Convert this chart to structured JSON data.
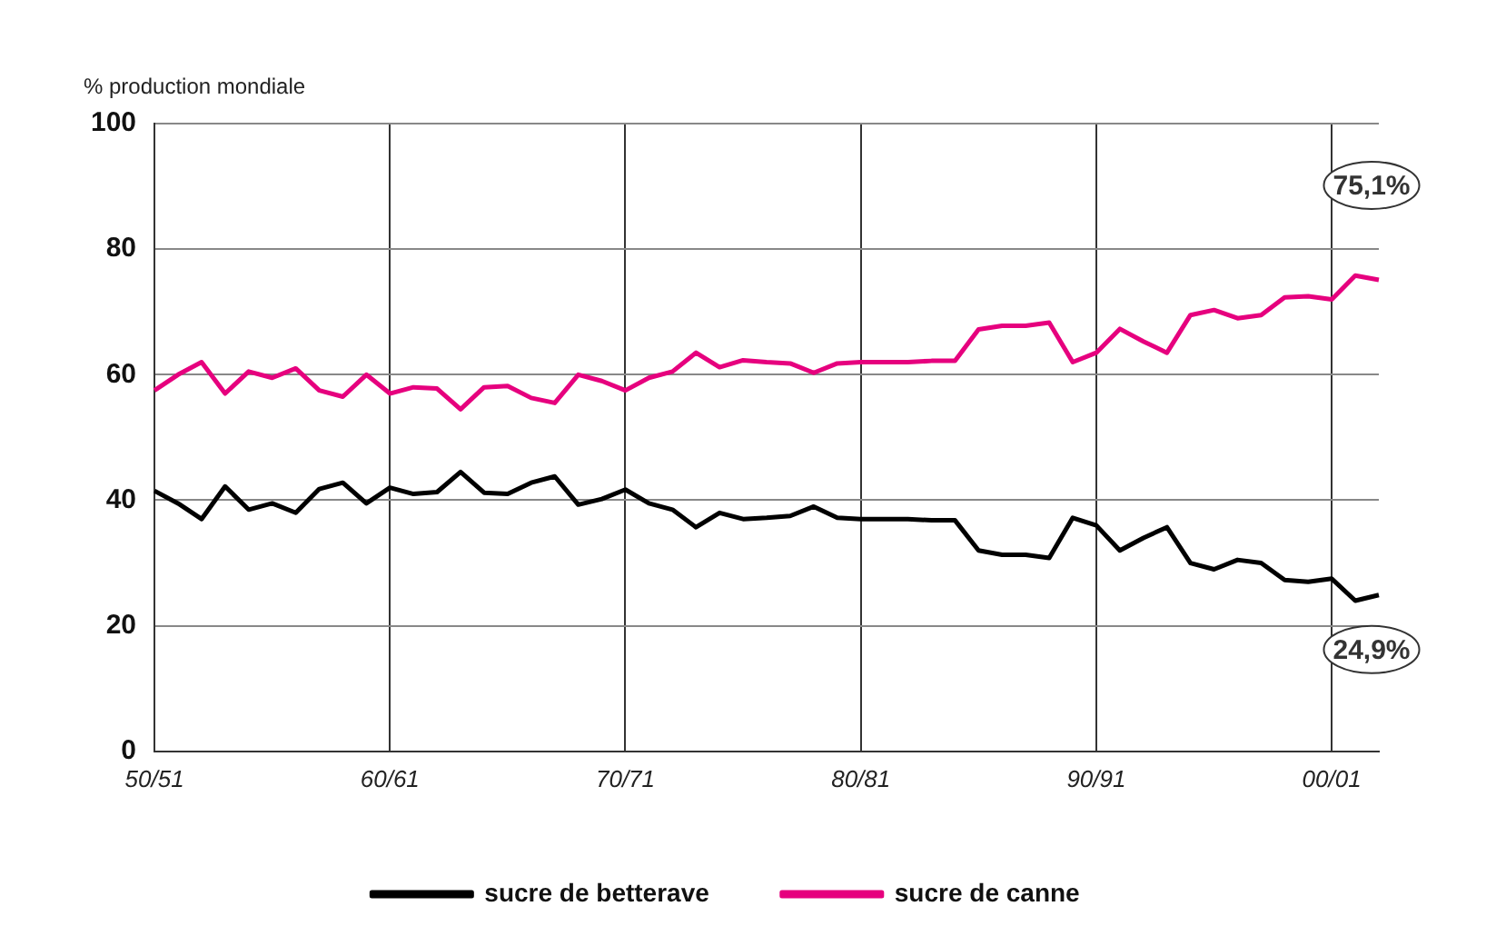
{
  "chart_data": {
    "type": "line",
    "ylabel": "% production mondiale",
    "categories": [
      "50/51",
      null,
      null,
      null,
      null,
      null,
      null,
      null,
      null,
      null,
      "60/61",
      null,
      null,
      null,
      null,
      null,
      null,
      null,
      null,
      null,
      "70/71",
      null,
      null,
      null,
      null,
      null,
      null,
      null,
      null,
      null,
      "80/81",
      null,
      null,
      null,
      null,
      null,
      null,
      null,
      null,
      null,
      "90/91",
      null,
      null,
      null,
      null,
      null,
      null,
      null,
      null,
      null,
      "00/01",
      null,
      null
    ],
    "series": [
      {
        "name": "sucre de betterave",
        "color": "#000000",
        "values": [
          41.5,
          39.5,
          37,
          42.2,
          38.5,
          39.5,
          38,
          41.8,
          42.8,
          39.5,
          42,
          41,
          41.3,
          44.5,
          41.2,
          41,
          42.8,
          43.8,
          39.3,
          40.2,
          41.7,
          39.5,
          38.5,
          35.7,
          38,
          37,
          37.2,
          37.5,
          39,
          37.2,
          37,
          37,
          37,
          36.8,
          36.8,
          32,
          31.3,
          31.3,
          30.8,
          37.2,
          36,
          32,
          34,
          35.7,
          30,
          29,
          30.5,
          30,
          27.3,
          27,
          27.5,
          24,
          24.9
        ]
      },
      {
        "name": "sucre de canne",
        "color": "#e6007e",
        "values": [
          57.5,
          60,
          62,
          57,
          60.5,
          59.5,
          61,
          57.5,
          56.5,
          60,
          57,
          58,
          57.8,
          54.5,
          58,
          58.2,
          56.3,
          55.5,
          60,
          59,
          57.5,
          59.5,
          60.5,
          63.5,
          61.2,
          62.3,
          62,
          61.8,
          60.3,
          61.8,
          62,
          62,
          62,
          62.2,
          62.2,
          67.2,
          67.8,
          67.8,
          68.3,
          62,
          63.5,
          67.3,
          65.3,
          63.5,
          69.5,
          70.3,
          69,
          69.5,
          72.3,
          72.5,
          72,
          75.8,
          75.1
        ]
      }
    ],
    "ylim": [
      0,
      100
    ],
    "yticks": [
      0,
      20,
      40,
      60,
      80,
      100
    ],
    "grid": true,
    "legend": "bottom",
    "marker": "none",
    "line_style": "solid",
    "annotations": [
      {
        "text": "75,1%",
        "y": 75.1
      },
      {
        "text": "24,9%",
        "y": 24.9
      }
    ]
  }
}
